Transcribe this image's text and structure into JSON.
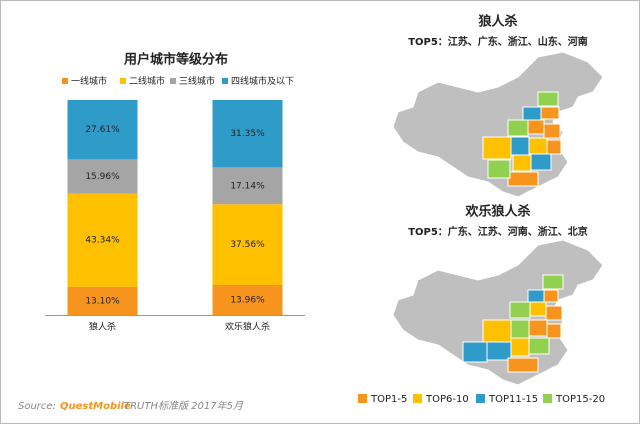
{
  "chart_data": {
    "type": "stacked_bar",
    "title": "用户城市等级分布",
    "categories": [
      "狼人杀",
      "欢乐狼人杀"
    ],
    "series": [
      {
        "name": "一线城市",
        "color": "#f7941d",
        "values": [
          13.1,
          13.96
        ],
        "value_labels": [
          "13.10%",
          "13.96%"
        ]
      },
      {
        "name": "二线城市",
        "color": "#ffc000",
        "values": [
          43.34,
          37.56
        ],
        "value_labels": [
          "43.34%",
          "37.56%"
        ]
      },
      {
        "name": "三线城市",
        "color": "#a5a5a5",
        "values": [
          15.96,
          17.14
        ],
        "value_labels": [
          "15.96%",
          "17.14%"
        ]
      },
      {
        "name": "四线城市及以下",
        "color": "#2e9bc8",
        "values": [
          27.61,
          31.35
        ],
        "value_labels": [
          "27.61%",
          "31.35%"
        ]
      }
    ],
    "ylim": [
      0,
      100
    ]
  },
  "maps": [
    {
      "title": "狼人杀",
      "subtitle": "TOP5：江苏、广东、浙江、山东、河南"
    },
    {
      "title": "欢乐狼人杀",
      "subtitle": "TOP5：广东、江苏、河南、浙江、北京"
    }
  ],
  "map_legend": [
    {
      "label": "TOP1-5",
      "color": "#f7941d"
    },
    {
      "label": "TOP6-10",
      "color": "#ffc000"
    },
    {
      "label": "TOP11-15",
      "color": "#2e9bc8"
    },
    {
      "label": "TOP15-20",
      "color": "#92d050"
    }
  ],
  "source": {
    "prefix": "Source:",
    "brand": "QuestMobile",
    "rest": "TRUTH标准版 2017年5月"
  }
}
